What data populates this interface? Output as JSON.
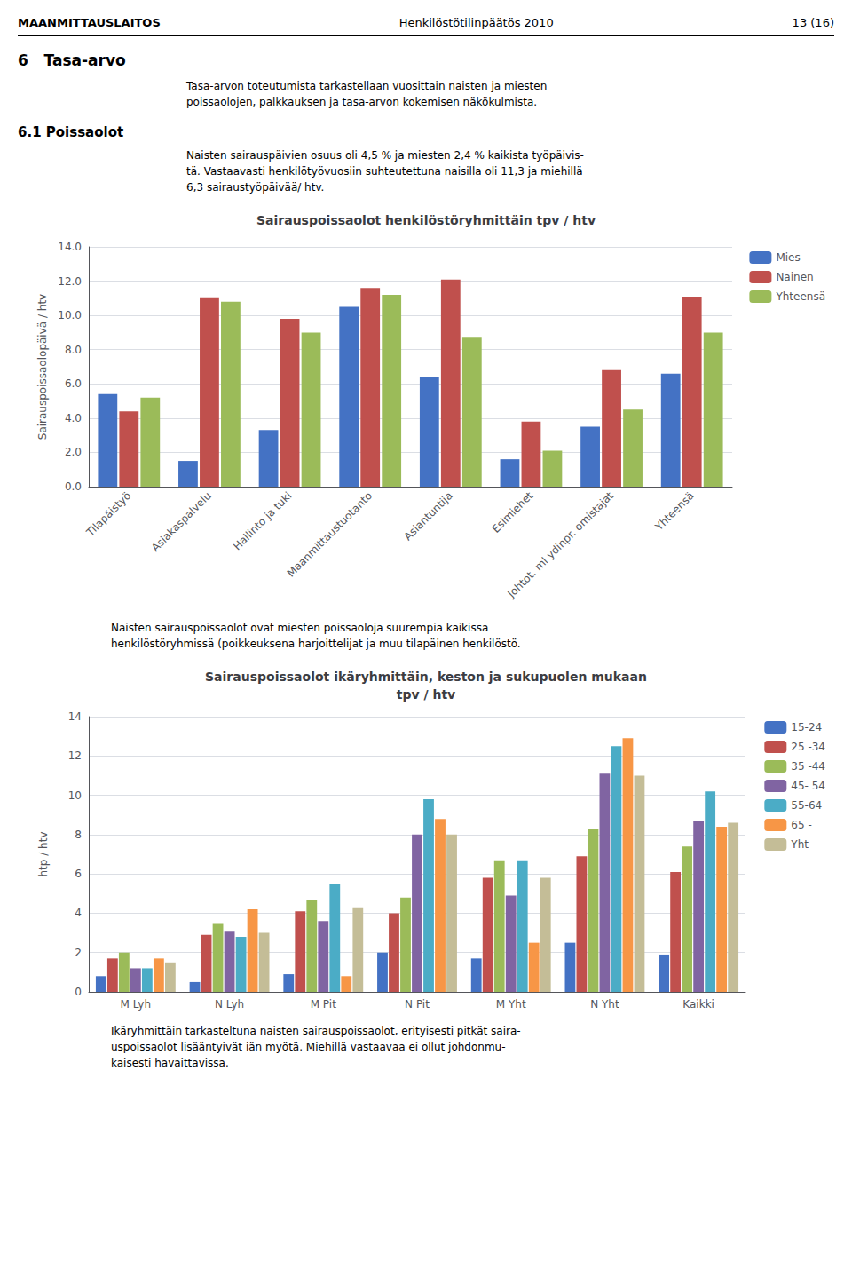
{
  "page_header": {
    "left": "MAANMITTAUSLAITOS",
    "center": "Henkilöstötilinpäätös 2010",
    "right": "13 (16)"
  },
  "section_title": "6   Tasa-arvo",
  "para1": "Tasa-arvon toteutumista tarkastellaan vuosittain naisten ja miesten\npoissaolojen, palkkauksen ja tasa-arvon kokemisen näkökulmista.",
  "section2_title": "6.1 Poissaolot",
  "para2": "Naisten sairauspäivien osuus oli 4,5 % ja miesten 2,4 % kaikista työpäivis-\ntä. Vastaavasti henkilötyövuosiin suhteutettuna naisilla oli 11,3 ja miehillä\n6,3 sairaustyöpäivää/ htv.",
  "para3": "Naisten sairauspoissaolot ovat miesten poissaoloja suurempia kaikissa\nhenkilöstöryhmissä (poikkeuksena harjoittelijat ja muu tilapäinen henkilöstö.",
  "para4": "Ikäryhmittäin tarkasteltuna naisten sairauspoissaolot, erityisesti pitkät saira-\nuspoissaolot lisääntyivät iän myötä. Miehillä vastaavaa ei ollut johdonmu-\nkaisesti havaittavissa.",
  "chart_data": [
    {
      "type": "bar",
      "title": "Sairauspoissaolot henkilöstöryhmittäin tpv / htv",
      "ylabel": "Sairauspoissaolopäivä / htv",
      "categories": [
        "Tilapäistyö",
        "Asiakaspalvelu",
        "Hallinto ja tuki",
        "Maanmittaustuotanto",
        "Asiantuntija",
        "Esimiehet",
        "Johtot. ml ydinpr. omistajat",
        "Yhteensä"
      ],
      "series": [
        {
          "name": "Mies",
          "color": "#4472C4",
          "values": [
            5.4,
            1.5,
            3.3,
            10.5,
            6.4,
            1.6,
            3.5,
            6.6
          ]
        },
        {
          "name": "Nainen",
          "color": "#C0504D",
          "values": [
            4.4,
            11.0,
            9.8,
            11.6,
            12.1,
            3.8,
            6.8,
            11.1
          ]
        },
        {
          "name": "Yhteensä",
          "color": "#9BBB59",
          "values": [
            5.2,
            10.8,
            9.0,
            11.2,
            8.7,
            2.1,
            4.5,
            9.0
          ]
        }
      ],
      "ylim": [
        0,
        14.0
      ],
      "yticks": [
        {
          "value": 0,
          "label": "0.0"
        },
        {
          "value": 2,
          "label": "2.0"
        },
        {
          "value": 4,
          "label": "4.0"
        },
        {
          "value": 6,
          "label": "6.0"
        },
        {
          "value": 8,
          "label": "8.0"
        },
        {
          "value": 10,
          "label": "10.0"
        },
        {
          "value": 12,
          "label": "12.0"
        },
        {
          "value": 14,
          "label": "14.0"
        }
      ],
      "grid": true,
      "legend": "upper right"
    },
    {
      "type": "bar",
      "title": "Sairauspoissaolot ikäryhmittäin, keston ja sukupuolen mukaan\ntpv / htv",
      "ylabel": "htp / htv",
      "categories": [
        "M Lyh",
        "N Lyh",
        "M Pit",
        "N Pit",
        "M Yht",
        "N Yht",
        "Kaikki"
      ],
      "series": [
        {
          "name": "15-24",
          "color": "#4472C4",
          "values": [
            0.8,
            0.5,
            0.9,
            2.0,
            1.7,
            2.5,
            1.9
          ]
        },
        {
          "name": "25 -34",
          "color": "#C0504D",
          "values": [
            1.7,
            2.9,
            4.1,
            4.0,
            5.8,
            6.9,
            6.1
          ]
        },
        {
          "name": "35 -44",
          "color": "#9BBB59",
          "values": [
            2.0,
            3.5,
            4.7,
            4.8,
            6.7,
            8.3,
            7.4
          ]
        },
        {
          "name": "45- 54",
          "color": "#8064A2",
          "values": [
            1.2,
            3.1,
            3.6,
            8.0,
            4.9,
            11.1,
            8.7
          ]
        },
        {
          "name": "55-64",
          "color": "#4BACC6",
          "values": [
            1.2,
            2.8,
            5.5,
            9.8,
            6.7,
            12.5,
            10.2
          ]
        },
        {
          "name": "65 -",
          "color": "#F79646",
          "values": [
            1.7,
            4.2,
            0.8,
            8.8,
            2.5,
            12.9,
            8.4
          ]
        },
        {
          "name": "Yht",
          "color": "#C4BD97",
          "values": [
            1.5,
            3.0,
            4.3,
            8.0,
            5.8,
            11.0,
            8.6
          ]
        }
      ],
      "ylim": [
        0,
        14
      ],
      "yticks": [
        0,
        2,
        4,
        6,
        8,
        10,
        12,
        14
      ],
      "grid": true,
      "legend": "upper right"
    }
  ]
}
